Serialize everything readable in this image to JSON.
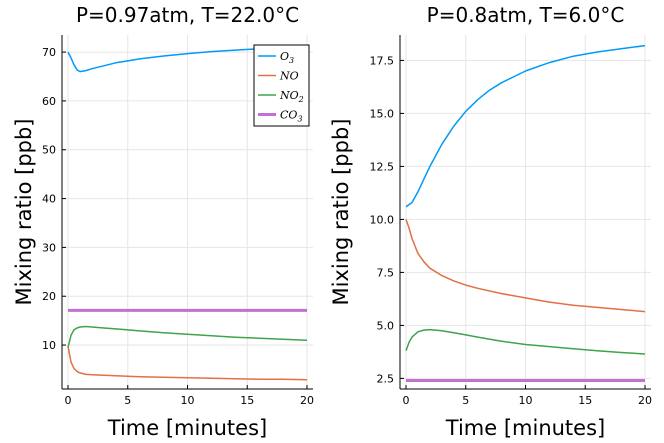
{
  "chart_data": [
    {
      "type": "line",
      "title": "P=0.97atm, T=22.0°C",
      "xlabel": "Time [minutes]",
      "ylabel": "Mixing ratio [ppb]",
      "xlim": [
        0,
        20
      ],
      "ylim": [
        1.0,
        73.5
      ],
      "xticks": [
        0,
        5,
        10,
        15,
        20
      ],
      "yticks": [
        10,
        20,
        30,
        40,
        50,
        60,
        70
      ],
      "tick_decimals": 0,
      "legend_position": "top-right",
      "series": [
        {
          "name": "O3",
          "label_base": "O",
          "label_sub": "3",
          "color": "#009af9",
          "x": [
            0,
            0.25,
            0.5,
            0.75,
            1.0,
            1.5,
            2,
            3,
            4,
            5,
            6,
            8,
            10,
            12,
            14,
            16,
            18,
            20
          ],
          "y": [
            70.0,
            68.8,
            67.4,
            66.4,
            66.0,
            66.2,
            66.6,
            67.2,
            67.8,
            68.2,
            68.6,
            69.2,
            69.7,
            70.1,
            70.4,
            70.7,
            70.95,
            71.2
          ]
        },
        {
          "name": "NO",
          "label_base": "NO",
          "label_sub": "",
          "color": "#e26f46",
          "x": [
            0,
            0.25,
            0.5,
            0.75,
            1.0,
            1.5,
            2,
            3,
            4,
            5,
            6,
            8,
            10,
            12,
            14,
            16,
            18,
            20
          ],
          "y": [
            9.8,
            6.5,
            5.2,
            4.6,
            4.3,
            4.0,
            3.9,
            3.8,
            3.7,
            3.6,
            3.5,
            3.4,
            3.3,
            3.2,
            3.1,
            3.0,
            3.0,
            2.9
          ]
        },
        {
          "name": "NO2",
          "label_base": "NO",
          "label_sub": "2",
          "color": "#3da44d",
          "x": [
            0,
            0.25,
            0.5,
            0.75,
            1.0,
            1.5,
            2,
            3,
            4,
            5,
            6,
            8,
            10,
            12,
            14,
            16,
            18,
            20
          ],
          "y": [
            9.5,
            12.0,
            13.1,
            13.5,
            13.7,
            13.8,
            13.7,
            13.5,
            13.3,
            13.1,
            12.9,
            12.5,
            12.2,
            11.9,
            11.6,
            11.4,
            11.2,
            11.0
          ]
        },
        {
          "name": "CO3",
          "label_base": "CO",
          "label_sub": "3",
          "color": "#c271d2",
          "thick": true,
          "x": [
            0,
            20
          ],
          "y": [
            17.1,
            17.1
          ]
        }
      ]
    },
    {
      "type": "line",
      "title": "P=0.8atm, T=6.0°C",
      "xlabel": "Time [minutes]",
      "ylabel": "Mixing ratio [ppb]",
      "xlim": [
        0,
        20
      ],
      "ylim": [
        2.0,
        18.7
      ],
      "xticks": [
        0,
        5,
        10,
        15,
        20
      ],
      "yticks": [
        2.5,
        5.0,
        7.5,
        10.0,
        12.5,
        15.0,
        17.5
      ],
      "tick_decimals": 1,
      "legend_position": "none",
      "series": [
        {
          "name": "O3",
          "color": "#009af9",
          "x": [
            0,
            0.5,
            1,
            1.5,
            2,
            3,
            4,
            5,
            6,
            7,
            8,
            10,
            12,
            14,
            16,
            18,
            20
          ],
          "y": [
            10.6,
            10.8,
            11.3,
            11.9,
            12.5,
            13.55,
            14.4,
            15.1,
            15.65,
            16.1,
            16.45,
            17.0,
            17.4,
            17.7,
            17.9,
            18.05,
            18.2
          ]
        },
        {
          "name": "NO",
          "color": "#e26f46",
          "x": [
            0,
            0.25,
            0.5,
            1,
            1.5,
            2,
            3,
            4,
            5,
            6,
            8,
            10,
            12,
            14,
            16,
            18,
            20
          ],
          "y": [
            10.0,
            9.6,
            9.1,
            8.4,
            8.0,
            7.7,
            7.35,
            7.1,
            6.9,
            6.75,
            6.5,
            6.3,
            6.1,
            5.95,
            5.85,
            5.75,
            5.65
          ]
        },
        {
          "name": "NO2",
          "color": "#3da44d",
          "x": [
            0,
            0.25,
            0.5,
            1,
            1.5,
            2,
            3,
            4,
            5,
            6,
            8,
            10,
            12,
            14,
            16,
            18,
            20
          ],
          "y": [
            3.8,
            4.2,
            4.45,
            4.7,
            4.78,
            4.8,
            4.75,
            4.65,
            4.55,
            4.45,
            4.25,
            4.1,
            4.0,
            3.9,
            3.8,
            3.72,
            3.65
          ]
        },
        {
          "name": "CO3",
          "color": "#c271d2",
          "thick": true,
          "x": [
            0,
            20
          ],
          "y": [
            2.4,
            2.4
          ]
        }
      ]
    }
  ]
}
